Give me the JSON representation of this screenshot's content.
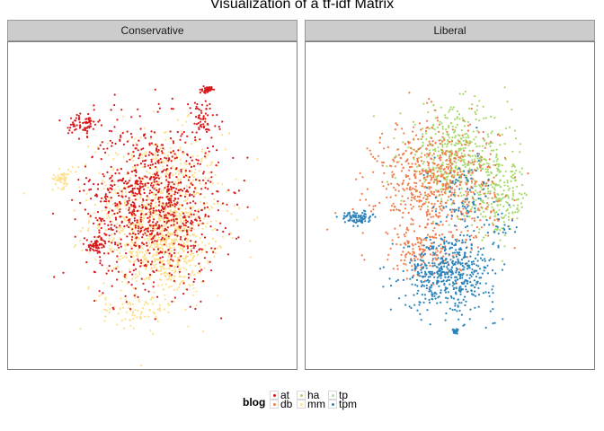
{
  "chart_data": {
    "type": "scatter",
    "title": "Visualization of a tf-idf Matrix",
    "xlabel": "",
    "ylabel": "",
    "grid": false,
    "legend_position": "bottom",
    "legend": {
      "title": "blog",
      "entries": [
        {
          "key": "at",
          "color": "#d7191c"
        },
        {
          "key": "db",
          "color": "#f07c4a"
        },
        {
          "key": "ha",
          "color": "#a6d96a"
        },
        {
          "key": "mm",
          "color": "#fee08b"
        },
        {
          "key": "tp",
          "color": "#abdda4"
        },
        {
          "key": "tpm",
          "color": "#2b83ba"
        }
      ]
    },
    "facets": [
      {
        "label": "Conservative",
        "series": [
          {
            "name": "mm",
            "color": "#fee08b",
            "points_approx": 1300,
            "clusters": [
              {
                "cx": 0.02,
                "cy": 0.0,
                "sx": 0.22,
                "sy": 0.26,
                "share": 0.62
              },
              {
                "cx": 0.05,
                "cy": -0.12,
                "sx": 0.14,
                "sy": 0.16,
                "share": 0.28
              },
              {
                "cx": -0.33,
                "cy": 0.12,
                "sx": 0.03,
                "sy": 0.03,
                "share": 0.04
              },
              {
                "cx": -0.05,
                "cy": -0.35,
                "sx": 0.12,
                "sy": 0.06,
                "share": 0.06
              }
            ]
          },
          {
            "name": "at",
            "color": "#d7191c",
            "points_approx": 1200,
            "clusters": [
              {
                "cx": 0.0,
                "cy": 0.03,
                "sx": 0.22,
                "sy": 0.26,
                "share": 0.8
              },
              {
                "cx": -0.25,
                "cy": 0.32,
                "sx": 0.05,
                "sy": 0.04,
                "share": 0.06
              },
              {
                "cx": 0.18,
                "cy": 0.33,
                "sx": 0.06,
                "sy": 0.07,
                "share": 0.05
              },
              {
                "cx": -0.2,
                "cy": -0.12,
                "sx": 0.04,
                "sy": 0.03,
                "share": 0.05
              },
              {
                "cx": 0.2,
                "cy": 0.44,
                "sx": 0.015,
                "sy": 0.01,
                "share": 0.04
              }
            ]
          }
        ]
      },
      {
        "label": "Liberal",
        "series": [
          {
            "name": "ha",
            "color": "#a6d96a",
            "points_approx": 650,
            "clusters": [
              {
                "cx": 0.02,
                "cy": 0.2,
                "sx": 0.18,
                "sy": 0.16,
                "share": 0.7
              },
              {
                "cx": 0.18,
                "cy": 0.05,
                "sx": 0.1,
                "sy": 0.12,
                "share": 0.3
              }
            ]
          },
          {
            "name": "db",
            "color": "#f07c4a",
            "points_approx": 800,
            "clusters": [
              {
                "cx": -0.05,
                "cy": 0.1,
                "sx": 0.2,
                "sy": 0.2,
                "share": 0.85
              },
              {
                "cx": -0.1,
                "cy": -0.15,
                "sx": 0.1,
                "sy": 0.08,
                "share": 0.15
              }
            ]
          },
          {
            "name": "tpm",
            "color": "#2b83ba",
            "points_approx": 750,
            "clusters": [
              {
                "cx": 0.0,
                "cy": -0.22,
                "sx": 0.15,
                "sy": 0.12,
                "share": 0.7
              },
              {
                "cx": -0.34,
                "cy": -0.02,
                "sx": 0.05,
                "sy": 0.02,
                "share": 0.12
              },
              {
                "cx": 0.05,
                "cy": 0.05,
                "sx": 0.12,
                "sy": 0.14,
                "share": 0.12
              },
              {
                "cx": 0.02,
                "cy": -0.43,
                "sx": 0.01,
                "sy": 0.01,
                "share": 0.03
              },
              {
                "cx": 0.18,
                "cy": -0.05,
                "sx": 0.05,
                "sy": 0.05,
                "share": 0.03
              }
            ]
          }
        ]
      }
    ]
  }
}
